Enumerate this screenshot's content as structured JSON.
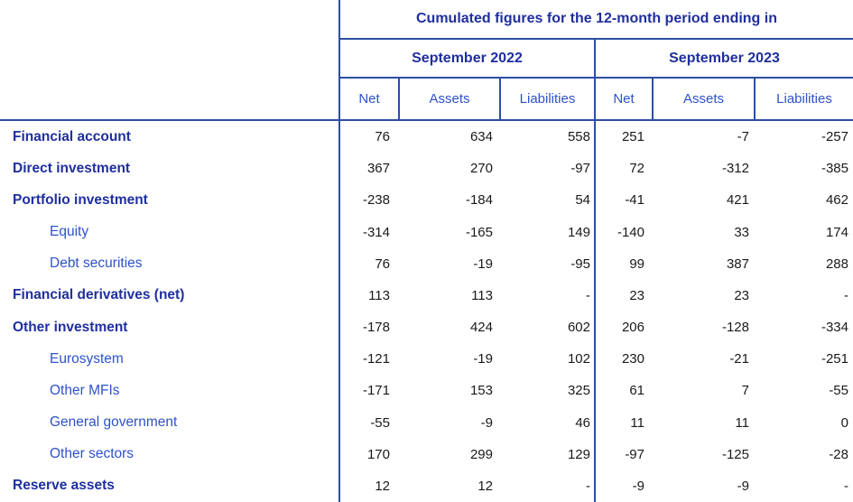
{
  "title": "Cumulated figures for the 12-month period ending in",
  "periods": [
    {
      "label": "September 2022"
    },
    {
      "label": "September 2023"
    }
  ],
  "columns": [
    "Net",
    "Assets",
    "Liabilities"
  ],
  "rows": [
    {
      "label": "Financial account",
      "bold": true,
      "values": [
        "76",
        "634",
        "558",
        "251",
        "-7",
        "-257"
      ]
    },
    {
      "label": "Direct investment",
      "bold": true,
      "values": [
        "367",
        "270",
        "-97",
        "72",
        "-312",
        "-385"
      ]
    },
    {
      "label": "Portfolio investment",
      "bold": true,
      "values": [
        "-238",
        "-184",
        "54",
        "-41",
        "421",
        "462"
      ]
    },
    {
      "label": "Equity",
      "bold": false,
      "values": [
        "-314",
        "-165",
        "149",
        "-140",
        "33",
        "174"
      ]
    },
    {
      "label": "Debt securities",
      "bold": false,
      "values": [
        "76",
        "-19",
        "-95",
        "99",
        "387",
        "288"
      ]
    },
    {
      "label": "Financial derivatives (net)",
      "bold": true,
      "values": [
        "113",
        "113",
        "-",
        "23",
        "23",
        "-"
      ]
    },
    {
      "label": "Other investment",
      "bold": true,
      "values": [
        "-178",
        "424",
        "602",
        "206",
        "-128",
        "-334"
      ]
    },
    {
      "label": "Eurosystem",
      "bold": false,
      "values": [
        "-121",
        "-19",
        "102",
        "230",
        "-21",
        "-251"
      ]
    },
    {
      "label": "Other MFIs",
      "bold": false,
      "values": [
        "-171",
        "153",
        "325",
        "61",
        "7",
        "-55"
      ]
    },
    {
      "label": "General government",
      "bold": false,
      "values": [
        "-55",
        "-9",
        "46",
        "11",
        "11",
        "0"
      ]
    },
    {
      "label": "Other sectors",
      "bold": false,
      "values": [
        "170",
        "299",
        "129",
        "-97",
        "-125",
        "-28"
      ]
    },
    {
      "label": "Reserve assets",
      "bold": true,
      "values": [
        "12",
        "12",
        "-",
        "-9",
        "-9",
        "-"
      ]
    }
  ],
  "colors": {
    "dark_blue": "#1f2f9e",
    "light_blue": "#2e52c8",
    "border_blue": "#2d4fa2",
    "number_black": "#1a1a1a"
  }
}
